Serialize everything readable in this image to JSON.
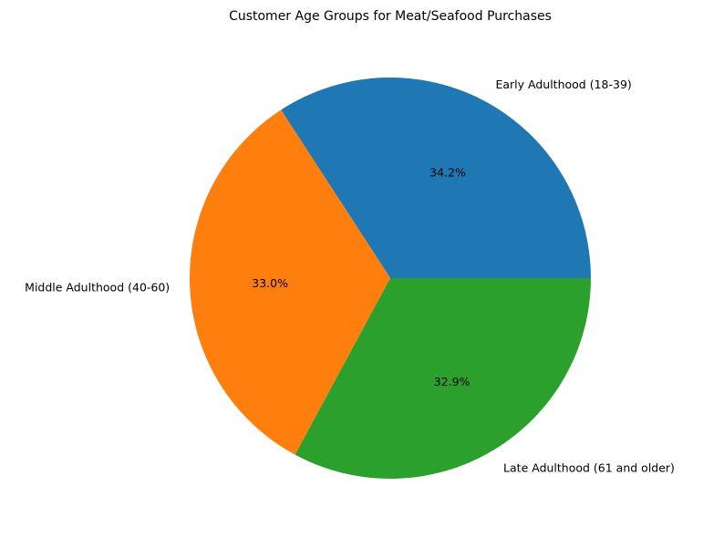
{
  "chart_data": {
    "type": "pie",
    "title": "Customer Age Groups for Meat/Seafood Purchases",
    "categories": [
      "Early Adulthood (18-39)",
      "Middle Adulthood (40-60)",
      "Late Adulthood (61 and older)"
    ],
    "values": [
      34.2,
      33.0,
      32.9
    ],
    "percent_labels": [
      "34.2%",
      "33.0%",
      "32.9%"
    ],
    "colors": [
      "#1f77b4",
      "#ff7f0e",
      "#2ca02c"
    ],
    "start_angle_deg": 0,
    "direction": "counterclockwise",
    "legend": "none"
  }
}
